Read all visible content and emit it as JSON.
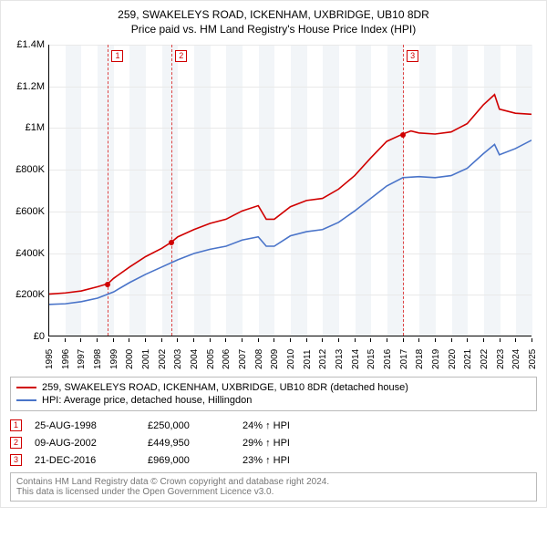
{
  "title": {
    "line1": "259, SWAKELEYS ROAD, ICKENHAM, UXBRIDGE, UB10 8DR",
    "line2": "Price paid vs. HM Land Registry's House Price Index (HPI)"
  },
  "chart": {
    "type": "line",
    "background_color": "#ffffff",
    "grid_color": "#e9e9e9",
    "band_color": "#f2f5f8",
    "axis_color": "#000000",
    "ylim": [
      0,
      1400000
    ],
    "ytick_step": 200000,
    "yticks": [
      "£0",
      "£200K",
      "£400K",
      "£600K",
      "£800K",
      "£1M",
      "£1.2M",
      "£1.4M"
    ],
    "xlim": [
      1995,
      2025
    ],
    "xticks": [
      1995,
      1996,
      1997,
      1998,
      1999,
      2000,
      2001,
      2002,
      2003,
      2004,
      2005,
      2006,
      2007,
      2008,
      2009,
      2010,
      2011,
      2012,
      2013,
      2014,
      2015,
      2016,
      2017,
      2018,
      2019,
      2020,
      2021,
      2022,
      2023,
      2024,
      2025
    ],
    "label_fontsize": 11,
    "tick_fontsize": 10,
    "line_width": 1.6,
    "series": [
      {
        "name": "price_paid",
        "color": "#d00000",
        "points": [
          [
            1995.0,
            200000
          ],
          [
            1996.0,
            205000
          ],
          [
            1997.0,
            215000
          ],
          [
            1998.0,
            235000
          ],
          [
            1998.65,
            250000
          ],
          [
            1999.0,
            275000
          ],
          [
            2000.0,
            330000
          ],
          [
            2001.0,
            380000
          ],
          [
            2002.0,
            420000
          ],
          [
            2002.6,
            449950
          ],
          [
            2003.0,
            475000
          ],
          [
            2004.0,
            510000
          ],
          [
            2005.0,
            540000
          ],
          [
            2006.0,
            560000
          ],
          [
            2007.0,
            600000
          ],
          [
            2008.0,
            625000
          ],
          [
            2008.5,
            560000
          ],
          [
            2009.0,
            560000
          ],
          [
            2010.0,
            620000
          ],
          [
            2011.0,
            650000
          ],
          [
            2012.0,
            660000
          ],
          [
            2013.0,
            705000
          ],
          [
            2014.0,
            770000
          ],
          [
            2015.0,
            855000
          ],
          [
            2016.0,
            935000
          ],
          [
            2016.97,
            969000
          ],
          [
            2017.5,
            985000
          ],
          [
            2018.0,
            975000
          ],
          [
            2019.0,
            970000
          ],
          [
            2020.0,
            980000
          ],
          [
            2021.0,
            1020000
          ],
          [
            2022.0,
            1110000
          ],
          [
            2022.7,
            1160000
          ],
          [
            2023.0,
            1090000
          ],
          [
            2024.0,
            1070000
          ],
          [
            2025.0,
            1065000
          ]
        ]
      },
      {
        "name": "hpi",
        "color": "#4a74c9",
        "points": [
          [
            1995.0,
            150000
          ],
          [
            1996.0,
            153000
          ],
          [
            1997.0,
            163000
          ],
          [
            1998.0,
            180000
          ],
          [
            1999.0,
            210000
          ],
          [
            2000.0,
            255000
          ],
          [
            2001.0,
            295000
          ],
          [
            2002.0,
            330000
          ],
          [
            2003.0,
            365000
          ],
          [
            2004.0,
            395000
          ],
          [
            2005.0,
            415000
          ],
          [
            2006.0,
            430000
          ],
          [
            2007.0,
            460000
          ],
          [
            2008.0,
            475000
          ],
          [
            2008.5,
            430000
          ],
          [
            2009.0,
            430000
          ],
          [
            2010.0,
            480000
          ],
          [
            2011.0,
            500000
          ],
          [
            2012.0,
            510000
          ],
          [
            2013.0,
            545000
          ],
          [
            2014.0,
            600000
          ],
          [
            2015.0,
            660000
          ],
          [
            2016.0,
            720000
          ],
          [
            2017.0,
            760000
          ],
          [
            2018.0,
            765000
          ],
          [
            2019.0,
            760000
          ],
          [
            2020.0,
            770000
          ],
          [
            2021.0,
            805000
          ],
          [
            2022.0,
            875000
          ],
          [
            2022.7,
            920000
          ],
          [
            2023.0,
            870000
          ],
          [
            2024.0,
            900000
          ],
          [
            2025.0,
            940000
          ]
        ]
      }
    ],
    "event_markers": [
      {
        "id": "1",
        "x": 1998.65,
        "y": 250000
      },
      {
        "id": "2",
        "x": 2002.6,
        "y": 449950
      },
      {
        "id": "3",
        "x": 2016.97,
        "y": 969000
      }
    ],
    "vline_color": "#d44"
  },
  "legend": {
    "items": [
      {
        "color": "#d00000",
        "label": "259, SWAKELEYS ROAD, ICKENHAM, UXBRIDGE, UB10 8DR (detached house)"
      },
      {
        "color": "#4a74c9",
        "label": "HPI: Average price, detached house, Hillingdon"
      }
    ]
  },
  "events": [
    {
      "id": "1",
      "date": "25-AUG-1998",
      "price": "£250,000",
      "delta": "24% ↑ HPI"
    },
    {
      "id": "2",
      "date": "09-AUG-2002",
      "price": "£449,950",
      "delta": "29% ↑ HPI"
    },
    {
      "id": "3",
      "date": "21-DEC-2016",
      "price": "£969,000",
      "delta": "23% ↑ HPI"
    }
  ],
  "footnote": {
    "line1": "Contains HM Land Registry data © Crown copyright and database right 2024.",
    "line2": "This data is licensed under the Open Government Licence v3.0."
  }
}
